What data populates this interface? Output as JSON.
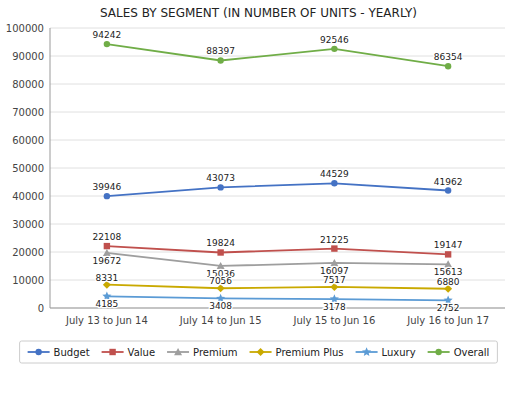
{
  "chart_data": {
    "type": "line",
    "title": "SALES BY SEGMENT (IN NUMBER OF UNITS - YEARLY)",
    "categories": [
      "July 13 to Jun 14",
      "July 14 to Jun 15",
      "July 15 to Jun 16",
      "July 16 to Jun 17"
    ],
    "series": [
      {
        "name": "Budget",
        "color": "#4472C4",
        "marker": "circle",
        "line_style": "solid",
        "values": [
          39946,
          43073,
          44529,
          41962
        ]
      },
      {
        "name": "Value",
        "color": "#C0504D",
        "marker": "square",
        "line_style": "solid",
        "values": [
          22108,
          19824,
          21225,
          19147
        ]
      },
      {
        "name": "Premium",
        "color": "#9E9E9E",
        "marker": "triangle",
        "line_style": "solid",
        "values": [
          19672,
          15036,
          16097,
          15613
        ]
      },
      {
        "name": "Premium Plus",
        "color": "#C9A900",
        "marker": "diamond",
        "line_style": "solid",
        "values": [
          8331,
          7056,
          7517,
          6880
        ]
      },
      {
        "name": "Luxury",
        "color": "#5B9BD5",
        "marker": "star",
        "line_style": "solid",
        "values": [
          4185,
          3408,
          3178,
          2752
        ]
      },
      {
        "name": "Overall",
        "color": "#70AD47",
        "marker": "circle",
        "line_style": "solid",
        "values": [
          94242,
          88397,
          92546,
          86354
        ]
      }
    ],
    "ylim": [
      0,
      100000
    ],
    "yticks": [
      0,
      10000,
      20000,
      30000,
      40000,
      50000,
      60000,
      70000,
      80000,
      90000,
      100000
    ],
    "grid": true,
    "legend": "bottom",
    "data_labels": true
  }
}
